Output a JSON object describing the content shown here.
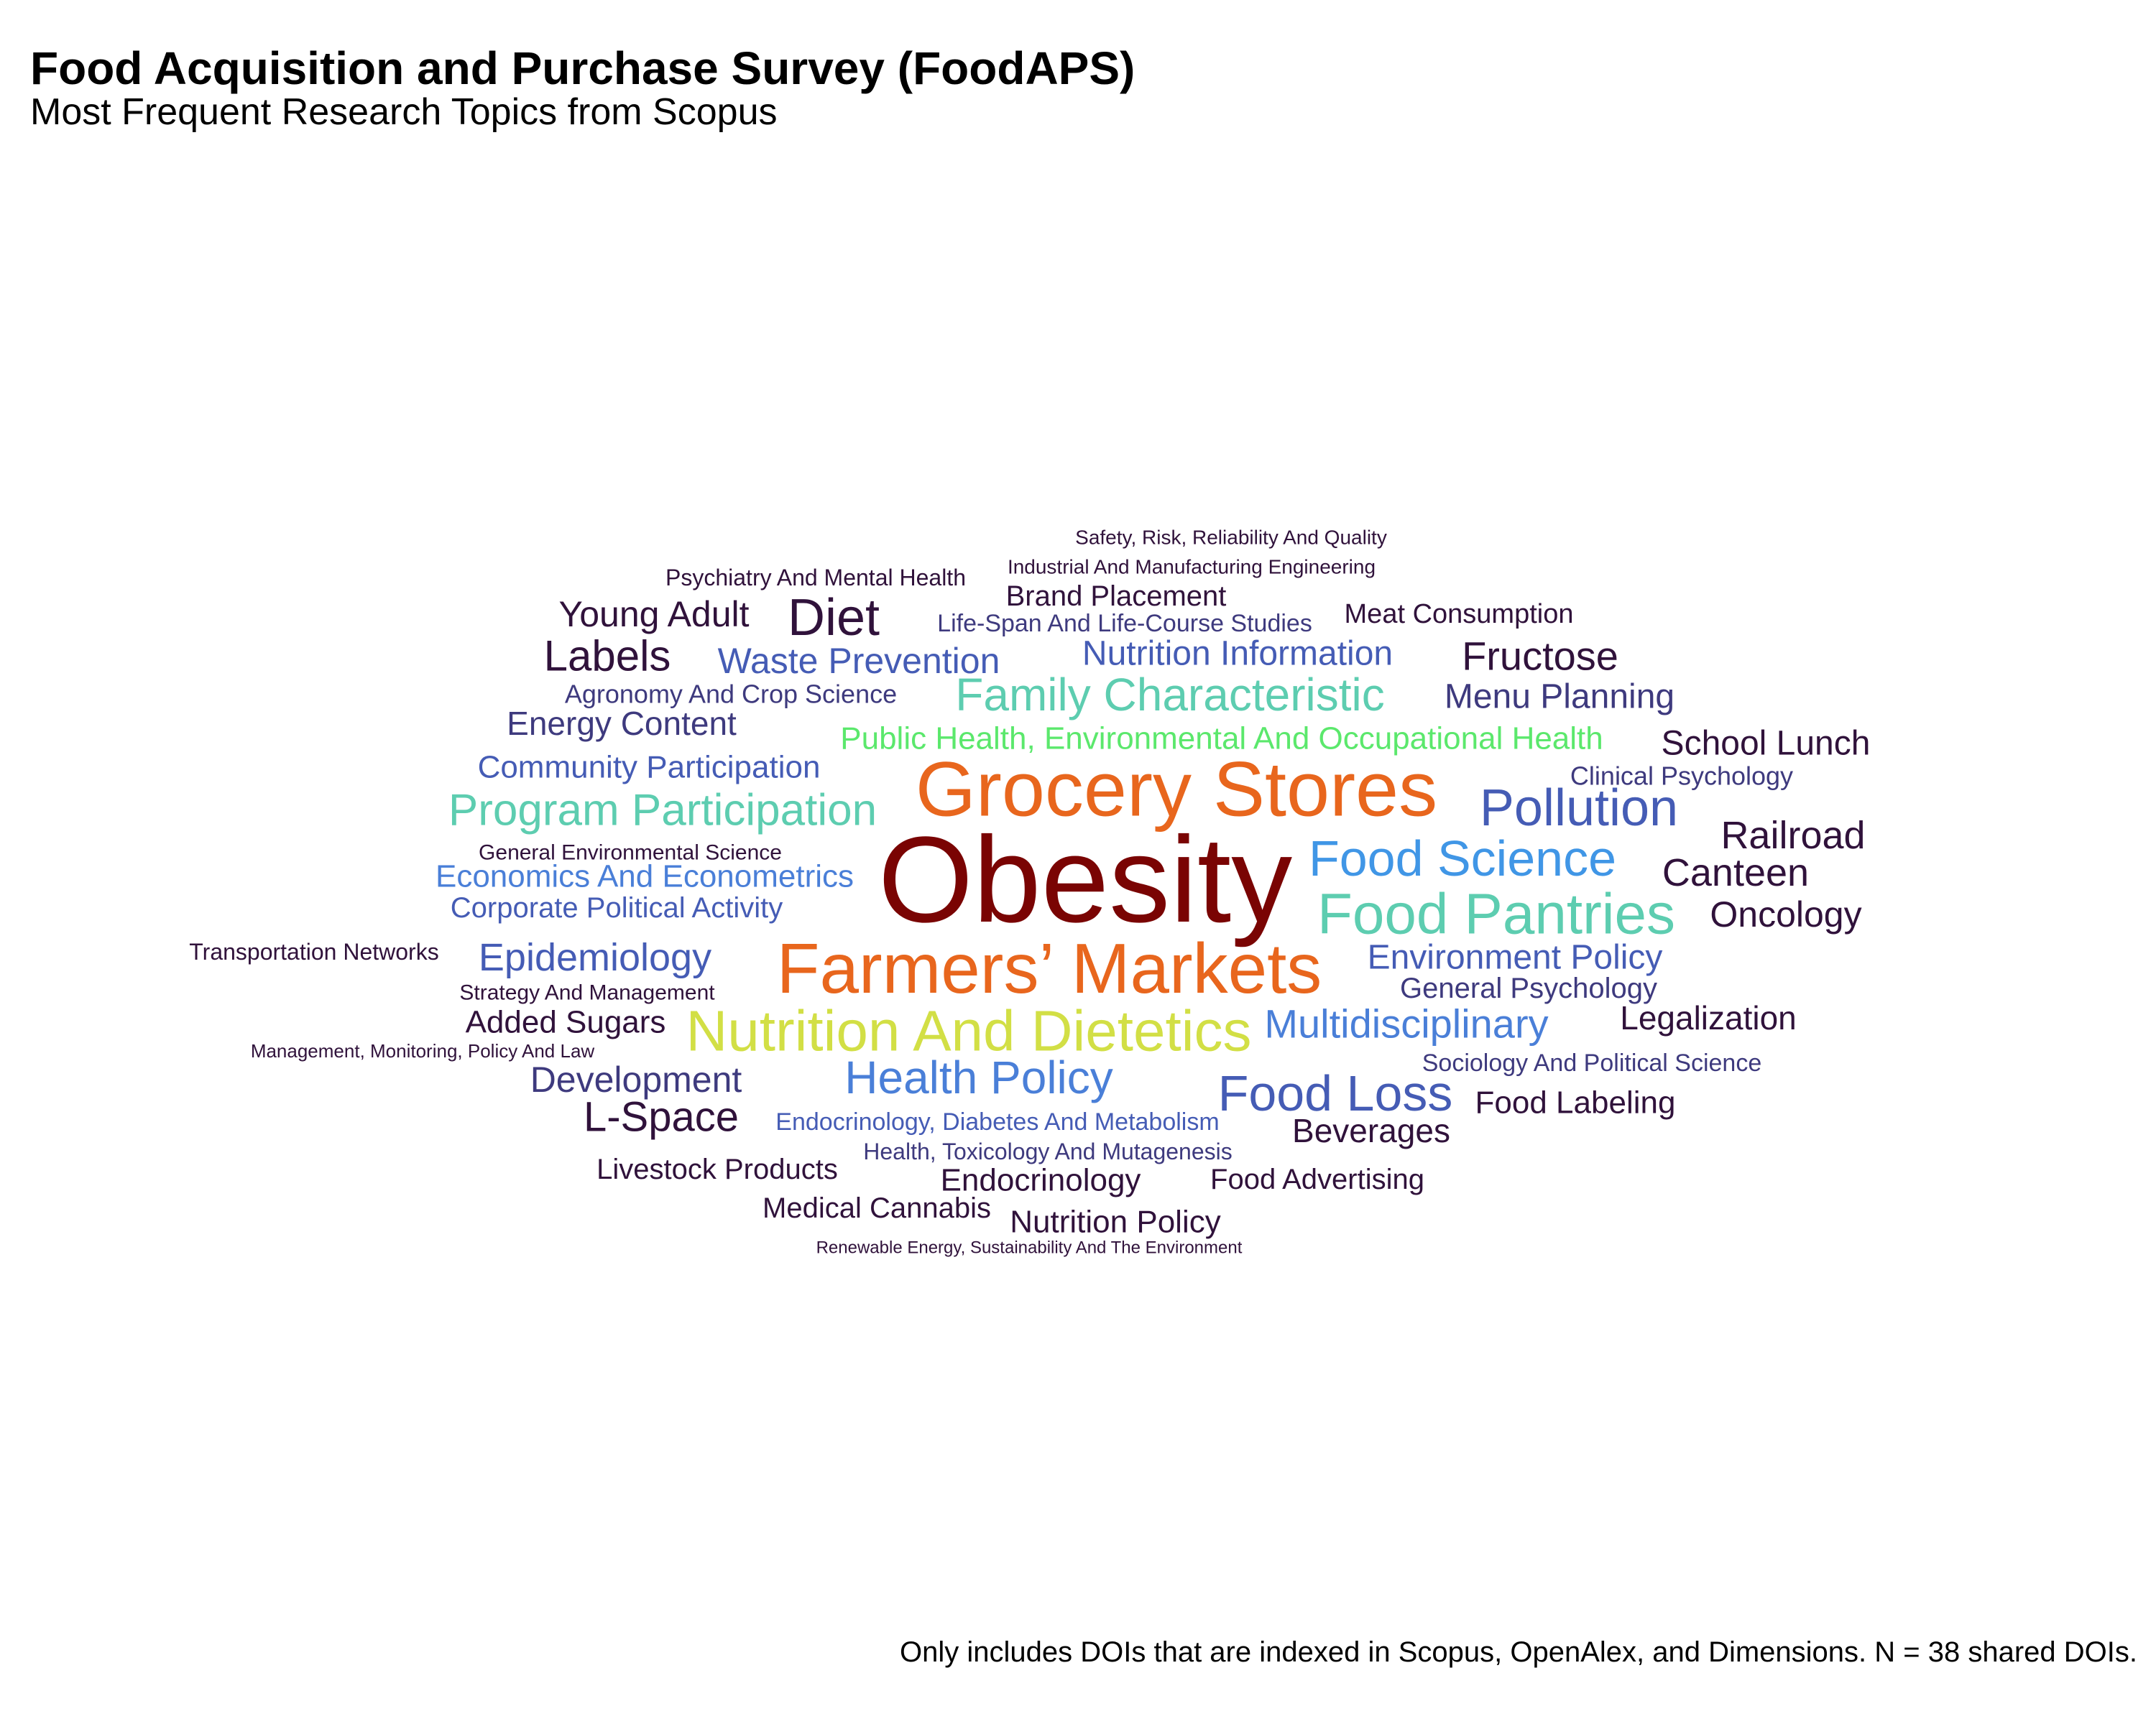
{
  "title": "Food Acquisition and Purchase Survey (FoodAPS)",
  "subtitle": "Most Frequent Research Topics from Scopus",
  "caption": "Only includes DOIs that are indexed in Scopus, OpenAlex, and Dimensions. N = 38 shared DOIs.",
  "chart_data": {
    "type": "wordcloud",
    "title": "Food Acquisition and Purchase Survey (FoodAPS)",
    "subtitle": "Most Frequent Research Topics from Scopus",
    "words": [
      {
        "text": "Obesity",
        "weight": 10,
        "color": "#7a0403"
      },
      {
        "text": "Grocery Stores",
        "weight": 6,
        "color": "#e8661d"
      },
      {
        "text": "Farmers’ Markets",
        "weight": 6,
        "color": "#e8661d"
      },
      {
        "text": "Nutrition And Dietetics",
        "weight": 4,
        "color": "#d2df45"
      },
      {
        "text": "Food Pantries",
        "weight": 4,
        "color": "#5dcdb0"
      },
      {
        "text": "Food Science",
        "weight": 4,
        "color": "#4096e6"
      },
      {
        "text": "Pollution",
        "weight": 4,
        "color": "#455cb5"
      },
      {
        "text": "Food Loss",
        "weight": 4,
        "color": "#455cb5"
      },
      {
        "text": "Program Participation",
        "weight": 3,
        "color": "#5dcdb0"
      },
      {
        "text": "Family Characteristic",
        "weight": 3,
        "color": "#5dcdb0"
      },
      {
        "text": "Health Policy",
        "weight": 3,
        "color": "#4a7fd8"
      },
      {
        "text": "Multidisciplinary",
        "weight": 3,
        "color": "#4a7fd8"
      },
      {
        "text": "Public Health, Environmental And Occupational Health",
        "weight": 2,
        "color": "#5be86c"
      },
      {
        "text": "Diet",
        "weight": 3,
        "color": "#30123b"
      },
      {
        "text": "Labels",
        "weight": 3,
        "color": "#30123b"
      },
      {
        "text": "L-Space",
        "weight": 3,
        "color": "#30123b"
      },
      {
        "text": "Epidemiology",
        "weight": 3,
        "color": "#455cb5"
      },
      {
        "text": "Economics And Econometrics",
        "weight": 2,
        "color": "#4a7fd8"
      },
      {
        "text": "Waste Prevention",
        "weight": 2,
        "color": "#455cb5"
      },
      {
        "text": "Nutrition Information",
        "weight": 2,
        "color": "#455cb5"
      },
      {
        "text": "Environment Policy",
        "weight": 2,
        "color": "#455cb5"
      },
      {
        "text": "Community Participation",
        "weight": 2,
        "color": "#455cb5"
      },
      {
        "text": "Corporate Political Activity",
        "weight": 2,
        "color": "#455cb5"
      },
      {
        "text": "Development",
        "weight": 2,
        "color": "#3e3a7e"
      },
      {
        "text": "Energy Content",
        "weight": 2,
        "color": "#3e3a7e"
      },
      {
        "text": "Menu Planning",
        "weight": 2,
        "color": "#3e3a7e"
      },
      {
        "text": "Railroad",
        "weight": 2,
        "color": "#30123b"
      },
      {
        "text": "Canteen",
        "weight": 2,
        "color": "#30123b"
      },
      {
        "text": "Fructose",
        "weight": 2,
        "color": "#30123b"
      },
      {
        "text": "Young Adult",
        "weight": 2,
        "color": "#30123b"
      },
      {
        "text": "Oncology",
        "weight": 2,
        "color": "#30123b"
      },
      {
        "text": "School Lunch",
        "weight": 2,
        "color": "#30123b"
      },
      {
        "text": "Legalization",
        "weight": 2,
        "color": "#30123b"
      },
      {
        "text": "Added Sugars",
        "weight": 2,
        "color": "#30123b"
      },
      {
        "text": "Beverages",
        "weight": 2,
        "color": "#30123b"
      },
      {
        "text": "Endocrinology",
        "weight": 2,
        "color": "#30123b"
      },
      {
        "text": "Food Labeling",
        "weight": 2,
        "color": "#30123b"
      },
      {
        "text": "Nutrition Policy",
        "weight": 2,
        "color": "#30123b"
      },
      {
        "text": "Brand Placement",
        "weight": 2,
        "color": "#30123b"
      },
      {
        "text": "Food Advertising",
        "weight": 2,
        "color": "#30123b"
      },
      {
        "text": "General Psychology",
        "weight": 2,
        "color": "#3e3a7e"
      },
      {
        "text": "Livestock Products",
        "weight": 2,
        "color": "#30123b"
      },
      {
        "text": "Medical Cannabis",
        "weight": 2,
        "color": "#30123b"
      },
      {
        "text": "Meat Consumption",
        "weight": 2,
        "color": "#30123b"
      },
      {
        "text": "Agronomy And Crop Science",
        "weight": 1,
        "color": "#3e3a7e"
      },
      {
        "text": "Life-Span And Life-Course Studies",
        "weight": 1,
        "color": "#3e3a7e"
      },
      {
        "text": "Clinical Psychology",
        "weight": 1,
        "color": "#3e3a7e"
      },
      {
        "text": "Sociology And Political Science",
        "weight": 1,
        "color": "#3e3a7e"
      },
      {
        "text": "Endocrinology, Diabetes And Metabolism",
        "weight": 1,
        "color": "#455cb5"
      },
      {
        "text": "Health, Toxicology And Mutagenesis",
        "weight": 1,
        "color": "#3e3a7e"
      },
      {
        "text": "Psychiatry And Mental Health",
        "weight": 1,
        "color": "#30123b"
      },
      {
        "text": "Safety, Risk, Reliability And Quality",
        "weight": 1,
        "color": "#30123b"
      },
      {
        "text": "Industrial And Manufacturing Engineering",
        "weight": 1,
        "color": "#30123b"
      },
      {
        "text": "General Environmental Science",
        "weight": 1,
        "color": "#30123b"
      },
      {
        "text": "Transportation Networks",
        "weight": 1,
        "color": "#30123b"
      },
      {
        "text": "Strategy And Management",
        "weight": 1,
        "color": "#30123b"
      },
      {
        "text": "Management, Monitoring, Policy And Law",
        "weight": 1,
        "color": "#30123b"
      },
      {
        "text": "Renewable Energy, Sustainability And The Environment",
        "weight": 1,
        "color": "#30123b"
      }
    ]
  }
}
